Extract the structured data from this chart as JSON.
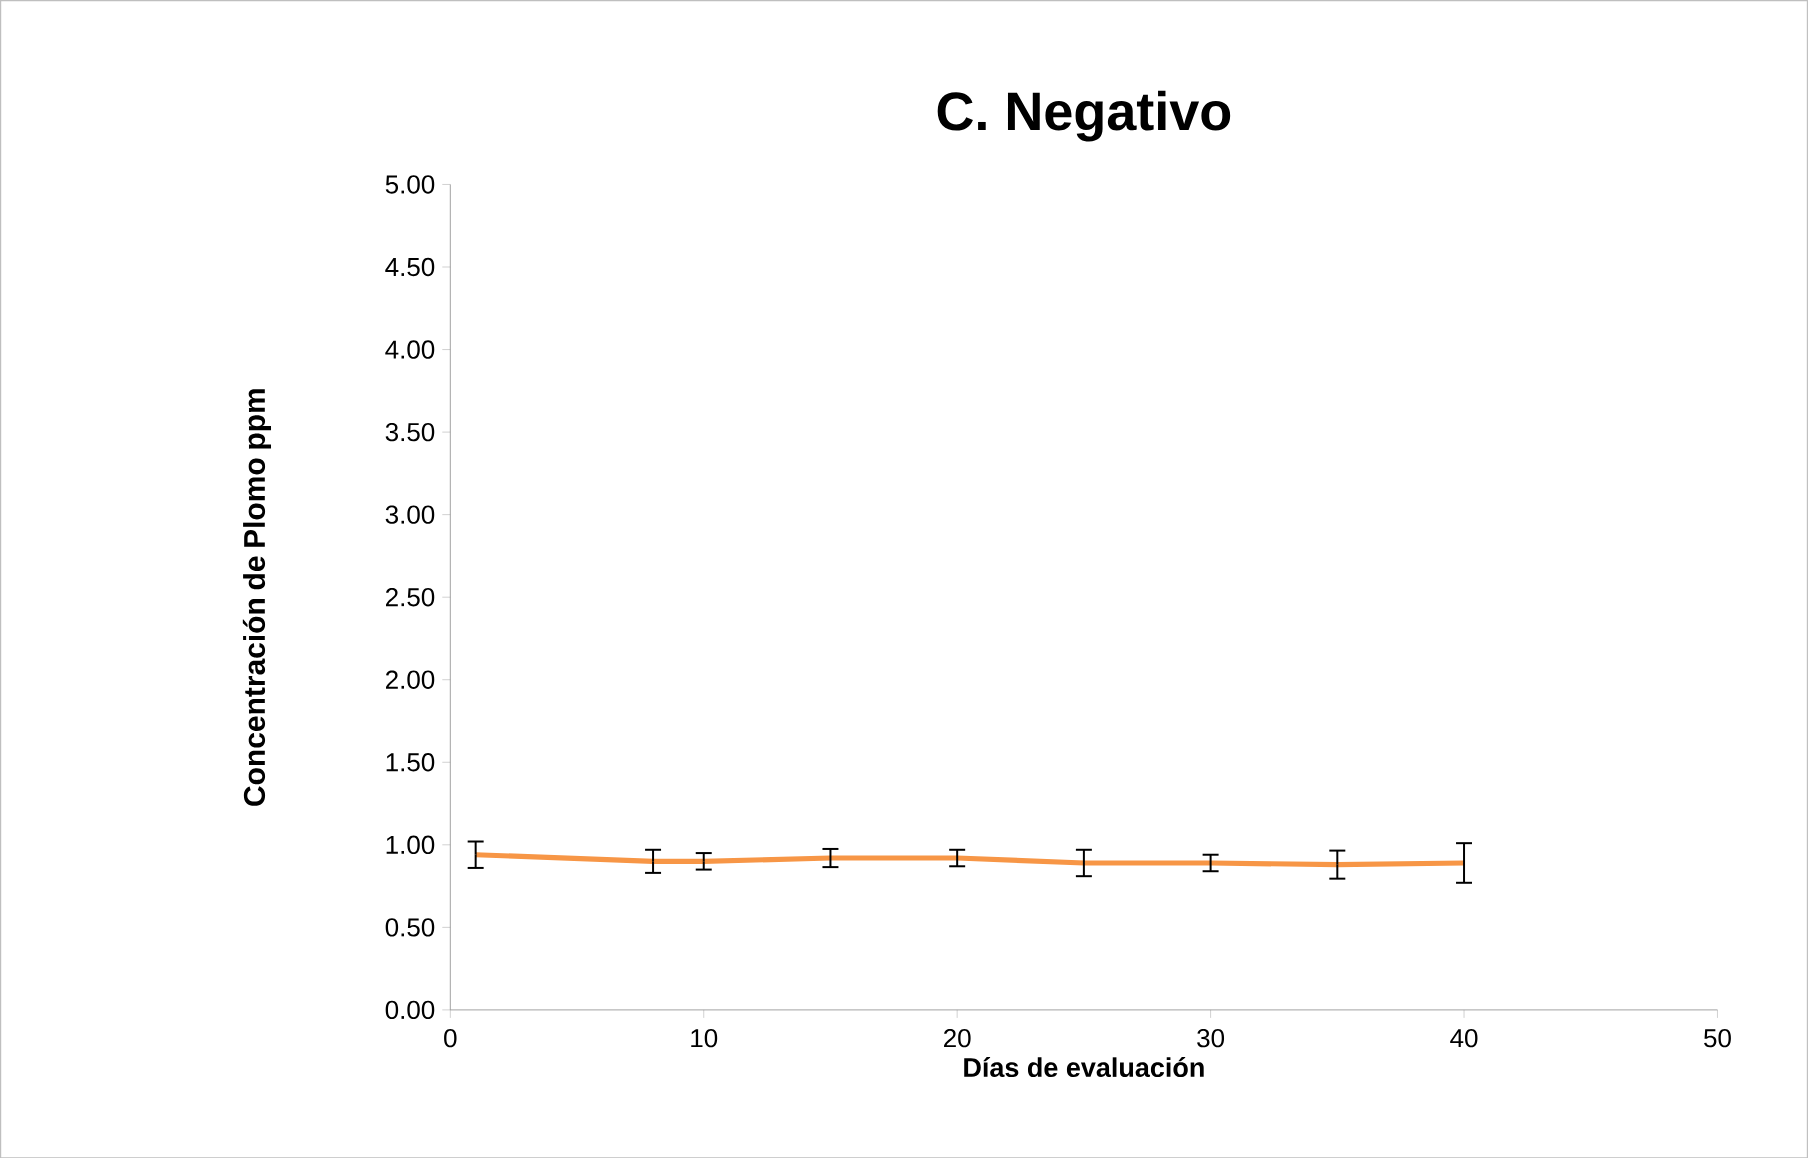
{
  "chart_data": {
    "type": "line",
    "title": "C. Negativo",
    "xlabel": "Días de evaluación",
    "ylabel": "Concentración  de Plomo ppm",
    "x": [
      1,
      8,
      10,
      15,
      20,
      25,
      30,
      35,
      40
    ],
    "series": [
      {
        "color": "#f79646",
        "values": [
          0.94,
          0.9,
          0.9,
          0.92,
          0.92,
          0.89,
          0.89,
          0.88,
          0.89
        ],
        "errors": [
          0.08,
          0.07,
          0.05,
          0.055,
          0.05,
          0.08,
          0.05,
          0.085,
          0.12
        ]
      }
    ],
    "xlim": [
      0,
      50
    ],
    "xticks": [
      0,
      10,
      20,
      30,
      40,
      50
    ],
    "ylim": [
      0,
      5
    ],
    "yticks": [
      {
        "value": 0,
        "label": "0.00"
      },
      {
        "value": 0.5,
        "label": "0.50"
      },
      {
        "value": 1,
        "label": "1.00"
      },
      {
        "value": 1.5,
        "label": "1.50"
      },
      {
        "value": 2,
        "label": "2.00"
      },
      {
        "value": 2.5,
        "label": "2.50"
      },
      {
        "value": 3,
        "label": "3.00"
      },
      {
        "value": 3.5,
        "label": "3.50"
      },
      {
        "value": 4,
        "label": "4.00"
      },
      {
        "value": 4.5,
        "label": "4.50"
      },
      {
        "value": 5,
        "label": "5.00"
      }
    ],
    "grid": false,
    "marker": "none",
    "line_style": "solid"
  }
}
